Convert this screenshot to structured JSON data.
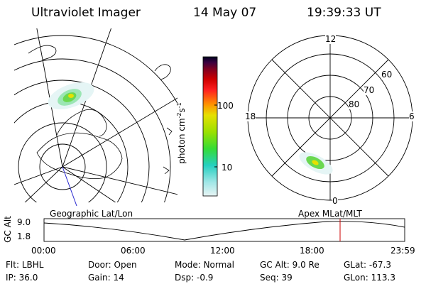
{
  "header": {
    "title": "Ultraviolet Imager",
    "date": "14 May 07",
    "time": "19:39:33 UT"
  },
  "colorbar": {
    "unit": "photon cm",
    "unit_exp1": "-2",
    "unit_mid": "s",
    "unit_exp2": "-1",
    "tick_high": "100",
    "tick_low": "10",
    "colors": [
      "#e8f4f4",
      "#9fe6e6",
      "#25d0c0",
      "#35dc35",
      "#9be000",
      "#e6e000",
      "#ff9000",
      "#ff2020",
      "#cc0000",
      "#800020",
      "#3a0040",
      "#000020"
    ]
  },
  "polar_plot": {
    "label_top": "12",
    "label_bottom": "0",
    "label_left": "18",
    "label_right": "6",
    "lat_60": "60",
    "lat_70": "70",
    "lat_80": "80"
  },
  "timeline": {
    "y_axis_label": "GC Alt",
    "y_top": "9.0",
    "y_bottom": "1.8",
    "left_caption": "Geographic Lat/Lon",
    "right_caption": "Apex MLat/MLT",
    "ticks": [
      "00:00",
      "06:00",
      "12:00",
      "18:00",
      "23:59"
    ],
    "marker_color": "#cc0000"
  },
  "info": {
    "row1": [
      {
        "label": "Flt:",
        "value": "LBHL"
      },
      {
        "label": "Door:",
        "value": "Open"
      },
      {
        "label": "Mode:",
        "value": "Normal"
      },
      {
        "label": "GC Alt:",
        "value": "9.0 Re"
      },
      {
        "label": "GLat:",
        "value": "-67.3"
      }
    ],
    "row2": [
      {
        "label": "IP:",
        "value": "36.0"
      },
      {
        "label": "Gain:",
        "value": "14"
      },
      {
        "label": "Dsp:",
        "value": "-0.9"
      },
      {
        "label": "Seq:",
        "value": "39"
      },
      {
        "label": "GLon:",
        "value": "113.3"
      }
    ]
  }
}
